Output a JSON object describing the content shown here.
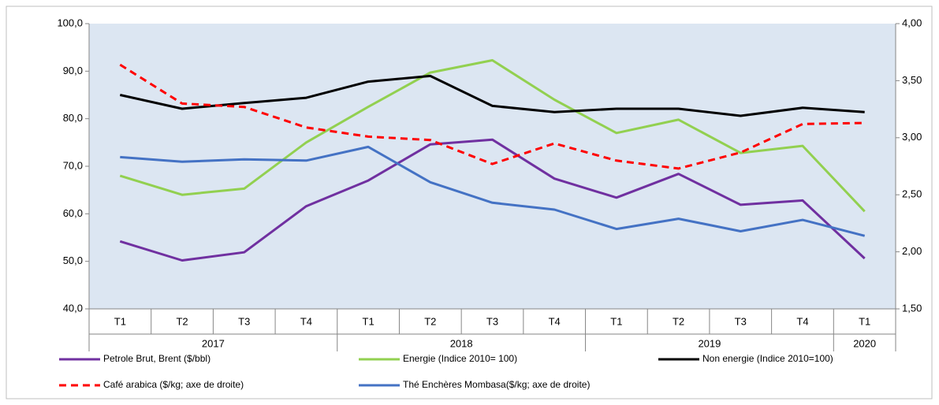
{
  "chart_data": {
    "type": "line",
    "categories": [
      "T1",
      "T2",
      "T3",
      "T4",
      "T1",
      "T2",
      "T3",
      "T4",
      "T1",
      "T2",
      "T3",
      "T4",
      "T1"
    ],
    "groups": [
      {
        "label": "2017",
        "count": 4
      },
      {
        "label": "2018",
        "count": 4
      },
      {
        "label": "2019",
        "count": 4
      },
      {
        "label": "2020",
        "count": 1
      }
    ],
    "ylim": [
      40,
      100
    ],
    "yticks": [
      {
        "value": 40,
        "label": "40,0"
      },
      {
        "value": 50,
        "label": "50,0"
      },
      {
        "value": 60,
        "label": "60,0"
      },
      {
        "value": 70,
        "label": "70,0"
      },
      {
        "value": 80,
        "label": "80,0"
      },
      {
        "value": 90,
        "label": "90,0"
      },
      {
        "value": 100,
        "label": "100,0"
      }
    ],
    "y2lim": [
      1.5,
      4.0
    ],
    "y2ticks": [
      {
        "value": 1.5,
        "label": "1,50"
      },
      {
        "value": 2.0,
        "label": "2,00"
      },
      {
        "value": 2.5,
        "label": "2,50"
      },
      {
        "value": 3.0,
        "label": "3,00"
      },
      {
        "value": 3.5,
        "label": "3,50"
      },
      {
        "value": 4.0,
        "label": "4,00"
      }
    ],
    "series": [
      {
        "name": "Petrole Brut, Brent ($/bbl)",
        "color": "#7030a0",
        "values": [
          54.2,
          50.2,
          51.9,
          61.6,
          67.0,
          74.6,
          75.6,
          67.4,
          63.4,
          68.4,
          61.9,
          62.8,
          50.6
        ]
      },
      {
        "name": "Energie (Indice 2010= 100)",
        "color": "#92d050",
        "values": [
          68.0,
          64.0,
          65.3,
          75.0,
          82.5,
          89.7,
          92.3,
          84.0,
          77.0,
          79.8,
          72.8,
          74.3,
          60.5
        ]
      },
      {
        "name": "Non energie (Indice 2010=100)",
        "color": "#000000",
        "values": [
          85.0,
          82.1,
          83.3,
          84.4,
          87.8,
          89.0,
          82.7,
          81.4,
          82.1,
          82.1,
          80.6,
          82.3,
          81.4
        ]
      },
      {
        "name": "Café arabica ($/kg; axe de droite)",
        "color": "#ff0000",
        "dashed": true,
        "axis": "y2",
        "values": [
          3.64,
          3.3,
          3.27,
          3.09,
          3.01,
          2.98,
          2.77,
          2.95,
          2.8,
          2.73,
          2.87,
          3.12,
          3.13
        ]
      },
      {
        "name": "Thé Enchères Mombasa($/kg; axe de droite)",
        "color": "#4472c4",
        "axis": "y2",
        "values": [
          2.83,
          2.79,
          2.81,
          2.8,
          2.92,
          2.61,
          2.43,
          2.37,
          2.2,
          2.29,
          2.18,
          2.28,
          2.14
        ]
      }
    ]
  }
}
